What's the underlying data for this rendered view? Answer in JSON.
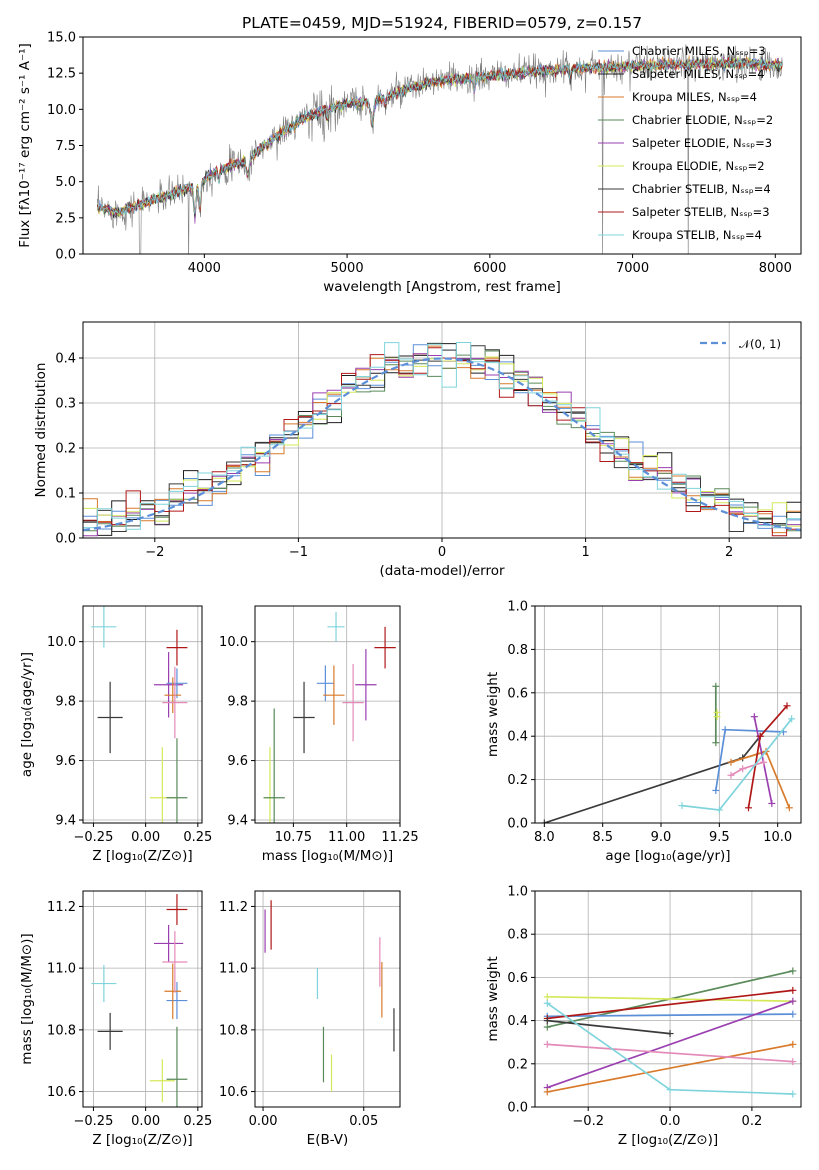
{
  "chart_data": [
    {
      "id": "spectrum",
      "type": "line",
      "title": "PLATE=0459, MJD=51924, FIBERID=0579, z=0.157",
      "xlabel": "wavelength [Angstrom, rest frame]",
      "ylabel": "Flux [fλ10⁻¹⁷ erg cm⁻² s⁻¹ A⁻¹]",
      "xlim": [
        3150,
        8180
      ],
      "ylim": [
        0,
        15
      ],
      "xticks": [
        4000,
        5000,
        6000,
        7000,
        8000
      ],
      "yticks": [
        0.0,
        2.5,
        5.0,
        7.5,
        10.0,
        12.5,
        15.0
      ],
      "grid": false,
      "legend_position": "top-right",
      "observed_color": "#7f7f7f",
      "continuum": [
        [
          3250,
          3.2
        ],
        [
          3400,
          2.9
        ],
        [
          3600,
          3.6
        ],
        [
          3800,
          4.2
        ],
        [
          3950,
          4.8
        ],
        [
          4100,
          5.8
        ],
        [
          4300,
          6.5
        ],
        [
          4500,
          8.1
        ],
        [
          4700,
          9.4
        ],
        [
          4860,
          10.0
        ],
        [
          5000,
          10.4
        ],
        [
          5200,
          10.6
        ],
        [
          5400,
          11.3
        ],
        [
          5600,
          11.9
        ],
        [
          5800,
          12.1
        ],
        [
          6000,
          12.3
        ],
        [
          6300,
          12.6
        ],
        [
          6600,
          12.8
        ],
        [
          7000,
          13.0
        ],
        [
          7400,
          13.1
        ],
        [
          7800,
          13.2
        ],
        [
          8050,
          13.0
        ]
      ],
      "series": [
        {
          "name": "Chabrier MILES, Nₛₛₚ=3",
          "color": "#5b8fd8"
        },
        {
          "name": "Salpeter MILES, Nₛₛₚ=4",
          "color": "#1f1f1f"
        },
        {
          "name": "Kroupa MILES, Nₛₛₚ=4",
          "color": "#d87a2a"
        },
        {
          "name": "Chabrier ELODIE, Nₛₛₚ=2",
          "color": "#5a8a5a"
        },
        {
          "name": "Salpeter ELODIE, Nₛₛₚ=3",
          "color": "#9a3fb0"
        },
        {
          "name": "Kroupa ELODIE, Nₛₛₚ=2",
          "color": "#d4e85a"
        },
        {
          "name": "Chabrier STELIB, Nₛₛₚ=4",
          "color": "#3a3a3a"
        },
        {
          "name": "Salpeter STELIB, Nₛₛₚ=3",
          "color": "#b01818"
        },
        {
          "name": "Kroupa STELIB, Nₛₛₚ=4",
          "color": "#7fd4dc"
        }
      ]
    },
    {
      "id": "residuals",
      "type": "bar",
      "xlabel": "(data-model)/error",
      "ylabel": "Normed distribution",
      "xlim": [
        -2.5,
        2.5
      ],
      "ylim": [
        0,
        0.48
      ],
      "xticks": [
        -2,
        -1,
        0,
        1,
        2
      ],
      "yticks": [
        0.0,
        0.1,
        0.2,
        0.3,
        0.4
      ],
      "xtick_labels": [
        "−2",
        "−1",
        "0",
        "1",
        "2"
      ],
      "bins": 50,
      "grid": true,
      "normal_curve_label": "𝒩(0, 1)",
      "normal_curve_color": "#5b8fd8",
      "legend_position": "top-right"
    },
    {
      "id": "age-vs-Z",
      "type": "scatter",
      "xlabel": "Z [log₁₀(Z/Z⊙)]",
      "ylabel": "age  [log₁₀(age/yr)]",
      "xlim": [
        -0.3,
        0.27
      ],
      "ylim": [
        9.39,
        10.12
      ],
      "xticks": [
        -0.25,
        0.0,
        0.25
      ],
      "xtick_labels": [
        "−0.25",
        "0.00",
        "0.25"
      ],
      "yticks": [
        9.4,
        9.6,
        9.8,
        10.0
      ],
      "points": [
        {
          "x": -0.2,
          "y": 10.05,
          "xerr": 0.06,
          "yerr": 0.07,
          "color": "#7fd4dc"
        },
        {
          "x": -0.17,
          "y": 9.745,
          "xerr": 0.06,
          "yerr": 0.12,
          "color": "#3a3a3a"
        },
        {
          "x": 0.15,
          "y": 9.98,
          "xerr": 0.05,
          "yerr": 0.06,
          "color": "#b01818"
        },
        {
          "x": 0.11,
          "y": 9.855,
          "xerr": 0.07,
          "yerr": 0.11,
          "color": "#9a3fb0"
        },
        {
          "x": 0.15,
          "y": 9.86,
          "xerr": 0.05,
          "yerr": 0.05,
          "color": "#5b8fd8"
        },
        {
          "x": 0.13,
          "y": 9.82,
          "xerr": 0.04,
          "yerr": 0.06,
          "color": "#d87a2a"
        },
        {
          "x": 0.14,
          "y": 9.795,
          "xerr": 0.06,
          "yerr": 0.12,
          "color": "#e48ab8"
        },
        {
          "x": 0.08,
          "y": 9.475,
          "xerr": 0.06,
          "yerr": 0.17,
          "color": "#d4e85a"
        },
        {
          "x": 0.15,
          "y": 9.475,
          "xerr": 0.05,
          "yerr": 0.2,
          "color": "#5a8a5a"
        }
      ]
    },
    {
      "id": "age-vs-mass",
      "type": "scatter",
      "xlabel": "mass [log₁₀(M/M⊙)]",
      "ylabel": "",
      "xlim": [
        10.57,
        11.25
      ],
      "ylim": [
        9.39,
        10.12
      ],
      "xticks": [
        10.75,
        11.0,
        11.25
      ],
      "yticks": [
        9.4,
        9.6,
        9.8,
        10.0
      ],
      "points": [
        {
          "x": 10.95,
          "y": 10.05,
          "xerr": 0.04,
          "yerr": 0.05,
          "color": "#7fd4dc"
        },
        {
          "x": 10.8,
          "y": 9.745,
          "xerr": 0.05,
          "yerr": 0.12,
          "color": "#3a3a3a"
        },
        {
          "x": 11.18,
          "y": 9.98,
          "xerr": 0.05,
          "yerr": 0.07,
          "color": "#b01818"
        },
        {
          "x": 11.09,
          "y": 9.855,
          "xerr": 0.05,
          "yerr": 0.12,
          "color": "#9a3fb0"
        },
        {
          "x": 10.9,
          "y": 9.86,
          "xerr": 0.04,
          "yerr": 0.06,
          "color": "#5b8fd8"
        },
        {
          "x": 10.94,
          "y": 9.82,
          "xerr": 0.05,
          "yerr": 0.1,
          "color": "#d87a2a"
        },
        {
          "x": 11.03,
          "y": 9.795,
          "xerr": 0.05,
          "yerr": 0.13,
          "color": "#e48ab8"
        },
        {
          "x": 10.64,
          "y": 9.475,
          "xerr": 0.03,
          "yerr": 0.17,
          "color": "#d4e85a"
        },
        {
          "x": 10.66,
          "y": 9.475,
          "xerr": 0.05,
          "yerr": 0.3,
          "color": "#5a8a5a"
        }
      ]
    },
    {
      "id": "weight-vs-age",
      "type": "line",
      "xlabel": "age  [log₁₀(age/yr)]",
      "ylabel": "mass weight",
      "xlim": [
        7.92,
        10.2
      ],
      "ylim": [
        0,
        1
      ],
      "xticks": [
        8.0,
        8.5,
        9.0,
        9.5,
        10.0
      ],
      "yticks": [
        0.0,
        0.2,
        0.4,
        0.6,
        0.8,
        1.0
      ],
      "grid": true,
      "series": [
        {
          "color": "#3a3a3a",
          "points": [
            [
              8.0,
              0.0
            ],
            [
              9.7,
              0.3
            ],
            [
              9.85,
              0.4
            ]
          ]
        },
        {
          "color": "#5a8a5a",
          "points": [
            [
              9.47,
              0.63
            ],
            [
              9.47,
              0.37
            ]
          ]
        },
        {
          "color": "#d4e85a",
          "points": [
            [
              9.48,
              0.51
            ],
            [
              9.48,
              0.49
            ]
          ]
        },
        {
          "color": "#5b8fd8",
          "points": [
            [
              9.47,
              0.15
            ],
            [
              9.55,
              0.43
            ],
            [
              10.05,
              0.42
            ]
          ]
        },
        {
          "color": "#d87a2a",
          "points": [
            [
              9.6,
              0.28
            ],
            [
              9.9,
              0.33
            ],
            [
              10.1,
              0.07
            ]
          ]
        },
        {
          "color": "#9a3fb0",
          "points": [
            [
              9.8,
              0.49
            ],
            [
              9.95,
              0.09
            ]
          ]
        },
        {
          "color": "#b01818",
          "points": [
            [
              9.75,
              0.07
            ],
            [
              9.85,
              0.4
            ],
            [
              10.08,
              0.54
            ]
          ]
        },
        {
          "color": "#e48ab8",
          "points": [
            [
              9.6,
              0.22
            ],
            [
              9.7,
              0.25
            ],
            [
              9.88,
              0.28
            ]
          ]
        },
        {
          "color": "#7fd4dc",
          "points": [
            [
              9.18,
              0.08
            ],
            [
              9.5,
              0.06
            ],
            [
              10.12,
              0.48
            ]
          ]
        }
      ]
    },
    {
      "id": "mass-vs-Z",
      "type": "scatter",
      "xlabel": "Z [log₁₀(Z/Z⊙)]",
      "ylabel": "mass [log₁₀(M/M⊙)]",
      "xlim": [
        -0.3,
        0.27
      ],
      "ylim": [
        10.55,
        11.25
      ],
      "xticks": [
        -0.25,
        0.0,
        0.25
      ],
      "xtick_labels": [
        "−0.25",
        "0.00",
        "0.25"
      ],
      "yticks": [
        10.6,
        10.8,
        11.0,
        11.2
      ],
      "points": [
        {
          "x": -0.2,
          "y": 10.95,
          "xerr": 0.06,
          "yerr": 0.06,
          "color": "#7fd4dc"
        },
        {
          "x": -0.17,
          "y": 10.795,
          "xerr": 0.06,
          "yerr": 0.06,
          "color": "#3a3a3a"
        },
        {
          "x": 0.15,
          "y": 11.19,
          "xerr": 0.05,
          "yerr": 0.05,
          "color": "#b01818"
        },
        {
          "x": 0.11,
          "y": 11.08,
          "xerr": 0.07,
          "yerr": 0.06,
          "color": "#9a3fb0"
        },
        {
          "x": 0.15,
          "y": 10.895,
          "xerr": 0.05,
          "yerr": 0.06,
          "color": "#5b8fd8"
        },
        {
          "x": 0.13,
          "y": 10.925,
          "xerr": 0.04,
          "yerr": 0.09,
          "color": "#d87a2a"
        },
        {
          "x": 0.14,
          "y": 11.02,
          "xerr": 0.06,
          "yerr": 0.1,
          "color": "#e48ab8"
        },
        {
          "x": 0.08,
          "y": 10.635,
          "xerr": 0.06,
          "yerr": 0.07,
          "color": "#d4e85a"
        },
        {
          "x": 0.15,
          "y": 10.64,
          "xerr": 0.05,
          "yerr": 0.17,
          "color": "#5a8a5a"
        }
      ]
    },
    {
      "id": "mass-vs-EBV",
      "type": "scatter",
      "xlabel": "E(B-V)",
      "ylabel": "",
      "xlim": [
        -0.004,
        0.068
      ],
      "ylim": [
        10.55,
        11.25
      ],
      "xticks": [
        0.0,
        0.05
      ],
      "yticks": [
        10.6,
        10.8,
        11.0,
        11.2
      ],
      "points": [
        {
          "x": 0.001,
          "y": 11.12,
          "xerr": 0,
          "yerr": 0.07,
          "color": "#9a3fb0"
        },
        {
          "x": 0.004,
          "y": 11.14,
          "xerr": 0,
          "yerr": 0.08,
          "color": "#b01818"
        },
        {
          "x": 0.027,
          "y": 10.95,
          "xerr": 0,
          "yerr": 0.05,
          "color": "#7fd4dc"
        },
        {
          "x": 0.03,
          "y": 10.72,
          "xerr": 0,
          "yerr": 0.09,
          "color": "#5a8a5a"
        },
        {
          "x": 0.034,
          "y": 10.66,
          "xerr": 0,
          "yerr": 0.06,
          "color": "#d4e85a"
        },
        {
          "x": 0.058,
          "y": 11.02,
          "xerr": 0,
          "yerr": 0.08,
          "color": "#e48ab8"
        },
        {
          "x": 0.059,
          "y": 10.93,
          "xerr": 0,
          "yerr": 0.09,
          "color": "#d87a2a"
        },
        {
          "x": 0.065,
          "y": 10.8,
          "xerr": 0,
          "yerr": 0.07,
          "color": "#3a3a3a"
        }
      ]
    },
    {
      "id": "weight-vs-Z",
      "type": "line",
      "xlabel": "Z [log₁₀(Z/Z⊙)]",
      "ylabel": "mass weight",
      "xlim": [
        -0.33,
        0.32
      ],
      "ylim": [
        0,
        1
      ],
      "xticks": [
        -0.2,
        0.0,
        0.2
      ],
      "xtick_labels": [
        "−0.2",
        "0.0",
        "0.2"
      ],
      "yticks": [
        0.0,
        0.2,
        0.4,
        0.6,
        0.8,
        1.0
      ],
      "grid": true,
      "series": [
        {
          "color": "#5a8a5a",
          "points": [
            [
              -0.3,
              0.37
            ],
            [
              0.3,
              0.63
            ]
          ]
        },
        {
          "color": "#d4e85a",
          "points": [
            [
              -0.3,
              0.51
            ],
            [
              0.3,
              0.49
            ]
          ]
        },
        {
          "color": "#5b8fd8",
          "points": [
            [
              -0.3,
              0.42
            ],
            [
              0.3,
              0.43
            ]
          ]
        },
        {
          "color": "#b01818",
          "points": [
            [
              -0.3,
              0.41
            ],
            [
              0.3,
              0.54
            ]
          ]
        },
        {
          "color": "#9a3fb0",
          "points": [
            [
              -0.3,
              0.09
            ],
            [
              0.3,
              0.49
            ]
          ]
        },
        {
          "color": "#d87a2a",
          "points": [
            [
              -0.3,
              0.07
            ],
            [
              0.3,
              0.29
            ]
          ]
        },
        {
          "color": "#e48ab8",
          "points": [
            [
              -0.3,
              0.29
            ],
            [
              0.3,
              0.21
            ]
          ]
        },
        {
          "color": "#3a3a3a",
          "points": [
            [
              -0.3,
              0.4
            ],
            [
              0.0,
              0.34
            ]
          ]
        },
        {
          "color": "#7fd4dc",
          "points": [
            [
              -0.3,
              0.48
            ],
            [
              0.0,
              0.08
            ],
            [
              0.3,
              0.06
            ]
          ]
        }
      ]
    }
  ]
}
